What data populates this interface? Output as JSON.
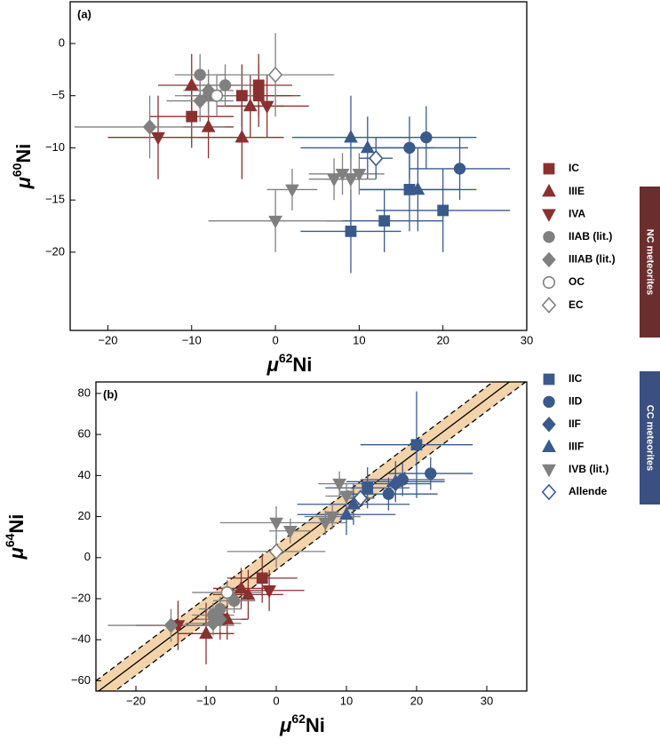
{
  "chart_data": [
    {
      "type": "scatter",
      "panel_label": "(a)",
      "xlabel": [
        "μ",
        "62",
        "Ni"
      ],
      "ylabel": [
        "μ",
        "60",
        "Ni"
      ],
      "xlim": [
        -24.5,
        30
      ],
      "ylim": [
        -27.5,
        4
      ],
      "xticks": [
        {
          "value": -20,
          "label": "−20"
        },
        {
          "value": -10,
          "label": "−10"
        },
        0,
        10,
        20,
        30
      ],
      "yticks": [
        0,
        {
          "value": -5,
          "label": "−5"
        },
        {
          "value": -10,
          "label": "−10"
        },
        {
          "value": -15,
          "label": "−15"
        },
        {
          "value": -20,
          "label": "−20"
        }
      ],
      "series": [
        {
          "name": "IC",
          "color": "#8b3030",
          "marker": "square",
          "filled": true,
          "x": [
            -10,
            -4,
            -2,
            -2
          ],
          "values": [
            -7,
            -5,
            -4,
            -5
          ],
          "xerr": [
            5,
            6,
            4,
            5
          ],
          "yerr": [
            3,
            3,
            3,
            3
          ]
        },
        {
          "name": "IIIE",
          "color": "#8b3030",
          "marker": "triangle-up",
          "filled": true,
          "x": [
            -10,
            -8,
            -4,
            -3
          ],
          "values": [
            -4,
            -8,
            -9,
            -6
          ],
          "xerr": [
            4,
            3,
            5,
            4
          ],
          "yerr": [
            3,
            3,
            4,
            3
          ]
        },
        {
          "name": "IVA",
          "color": "#8b3030",
          "marker": "triangle-down",
          "filled": true,
          "x": [
            -14,
            -1
          ],
          "values": [
            -9,
            -6
          ],
          "xerr": [
            6,
            5
          ],
          "yerr": [
            4,
            3
          ]
        },
        {
          "name": "IIAB (lit.)",
          "color": "#808080",
          "marker": "circle",
          "filled": true,
          "x": [
            -9,
            -6,
            -8
          ],
          "values": [
            -3,
            -4,
            -5
          ],
          "xerr": [
            3,
            3,
            3
          ],
          "yerr": [
            2,
            2,
            2
          ]
        },
        {
          "name": "IIIAB (lit.)",
          "color": "#808080",
          "marker": "diamond",
          "filled": true,
          "x": [
            -15,
            -9,
            -8
          ],
          "values": [
            -8,
            -5.5,
            -4.5
          ],
          "xerr": [
            9,
            4,
            3
          ],
          "yerr": [
            3,
            2,
            2
          ]
        },
        {
          "name": "OC",
          "color": "#808080",
          "marker": "circle",
          "filled": false,
          "x": [
            -7
          ],
          "values": [
            -5
          ],
          "xerr": [
            5
          ],
          "yerr": [
            2
          ]
        },
        {
          "name": "EC",
          "color": "#808080",
          "marker": "diamond",
          "filled": false,
          "x": [
            0
          ],
          "values": [
            -3
          ],
          "xerr": [
            7
          ],
          "yerr": [
            4
          ]
        },
        {
          "name": "IIC",
          "color": "#3a5a8c",
          "marker": "square",
          "filled": true,
          "x": [
            9,
            13,
            20,
            16
          ],
          "values": [
            -18,
            -17,
            -16,
            -14
          ],
          "xerr": [
            6,
            7,
            8,
            6
          ],
          "yerr": [
            4,
            3,
            4,
            4
          ]
        },
        {
          "name": "IID",
          "color": "#3a5a8c",
          "marker": "circle",
          "filled": true,
          "x": [
            16,
            18,
            22
          ],
          "values": [
            -10,
            -9,
            -12
          ],
          "xerr": [
            7,
            6,
            6
          ],
          "yerr": [
            3,
            3,
            3
          ]
        },
        {
          "name": "IIF",
          "color": "#3a5a8c",
          "marker": "diamond",
          "filled": true,
          "x": [],
          "values": [],
          "xerr": [],
          "yerr": []
        },
        {
          "name": "IIIF",
          "color": "#3a5a8c",
          "marker": "triangle-up",
          "filled": true,
          "x": [
            9,
            11,
            17
          ],
          "values": [
            -9,
            -10,
            -14
          ],
          "xerr": [
            7,
            8,
            7
          ],
          "yerr": [
            4,
            3,
            4
          ]
        },
        {
          "name": "IVB (lit.)",
          "color": "#808080",
          "marker": "triangle-down",
          "filled": true,
          "x": [
            0,
            2,
            7,
            8,
            9,
            10
          ],
          "values": [
            -17,
            -14,
            -13,
            -12.5,
            -13,
            -12.5
          ],
          "xerr": [
            8,
            3,
            3,
            4,
            3,
            3
          ],
          "yerr": [
            3,
            2,
            2,
            2,
            2,
            2
          ]
        },
        {
          "name": "Allende",
          "color": "#3a5a8c",
          "marker": "diamond",
          "filled": false,
          "x": [
            12
          ],
          "values": [
            -11
          ],
          "xerr": [
            2
          ],
          "yerr": [
            2
          ]
        }
      ]
    },
    {
      "type": "scatter",
      "panel_label": "(b)",
      "xlabel": [
        "μ",
        "62",
        "Ni"
      ],
      "ylabel": [
        "μ",
        "64",
        "Ni"
      ],
      "xlim": [
        -25.7,
        35.7
      ],
      "ylim": [
        -65,
        85.6
      ],
      "xticks": [
        {
          "value": -20,
          "label": "−20"
        },
        {
          "value": -10,
          "label": "−10"
        },
        0,
        10,
        20,
        30
      ],
      "yticks": [
        80,
        60,
        40,
        20,
        0,
        {
          "value": -20,
          "label": "−20"
        },
        {
          "value": -40,
          "label": "−40"
        },
        {
          "value": -60,
          "label": "−60"
        }
      ],
      "fit": {
        "x": [
          -25.7,
          35.7
        ],
        "values": [
          -66,
          92
        ],
        "lower": [
          -72,
          86
        ],
        "upper": [
          -60,
          98
        ]
      },
      "series": [
        {
          "name": "IC",
          "color": "#8b3030",
          "marker": "square",
          "filled": true,
          "x": [
            -2,
            -8
          ],
          "values": [
            -10,
            -30
          ],
          "xerr": [
            5,
            4
          ],
          "yerr": [
            12,
            10
          ]
        },
        {
          "name": "IIIE",
          "color": "#8b3030",
          "marker": "triangle-up",
          "filled": true,
          "x": [
            -10,
            -7,
            -4,
            -5
          ],
          "values": [
            -37,
            -30,
            -18,
            -15
          ],
          "xerr": [
            4,
            3,
            5,
            4
          ],
          "yerr": [
            15,
            10,
            12,
            10
          ]
        },
        {
          "name": "IVA",
          "color": "#8b3030",
          "marker": "triangle-down",
          "filled": true,
          "x": [
            -14,
            -1
          ],
          "values": [
            -33,
            -16
          ],
          "xerr": [
            6,
            5
          ],
          "yerr": [
            12,
            10
          ]
        },
        {
          "name": "IIAB (lit.)",
          "color": "#808080",
          "marker": "circle",
          "filled": true,
          "x": [
            -6,
            -8,
            -9
          ],
          "values": [
            -21,
            -25,
            -28
          ],
          "xerr": [
            3,
            3,
            3
          ],
          "yerr": [
            6,
            6,
            6
          ]
        },
        {
          "name": "IIIAB (lit.)",
          "color": "#808080",
          "marker": "diamond",
          "filled": true,
          "x": [
            -15,
            -9,
            -8
          ],
          "values": [
            -33,
            -32,
            -30
          ],
          "xerr": [
            9,
            4,
            3
          ],
          "yerr": [
            8,
            6,
            6
          ]
        },
        {
          "name": "OC",
          "color": "#808080",
          "marker": "circle",
          "filled": false,
          "x": [
            -7
          ],
          "values": [
            -17
          ],
          "xerr": [
            5
          ],
          "yerr": [
            6
          ]
        },
        {
          "name": "EC",
          "color": "#808080",
          "marker": "diamond",
          "filled": false,
          "x": [
            0
          ],
          "values": [
            3
          ],
          "xerr": [
            7
          ],
          "yerr": [
            8
          ]
        },
        {
          "name": "IIC",
          "color": "#3a5a8c",
          "marker": "square",
          "filled": true,
          "x": [
            20,
            13
          ],
          "values": [
            55,
            34
          ],
          "xerr": [
            8,
            6
          ],
          "yerr": [
            26,
            10
          ]
        },
        {
          "name": "IID",
          "color": "#3a5a8c",
          "marker": "circle",
          "filled": true,
          "x": [
            22,
            18,
            16
          ],
          "values": [
            41,
            38,
            31
          ],
          "xerr": [
            6,
            6,
            7
          ],
          "yerr": [
            8,
            8,
            8
          ]
        },
        {
          "name": "IIF",
          "color": "#3a5a8c",
          "marker": "diamond",
          "filled": true,
          "x": [
            17
          ],
          "values": [
            36
          ],
          "xerr": [
            5
          ],
          "yerr": [
            8
          ]
        },
        {
          "name": "IIIF",
          "color": "#3a5a8c",
          "marker": "triangle-up",
          "filled": true,
          "x": [
            11,
            10,
            17
          ],
          "values": [
            26,
            21,
            37
          ],
          "xerr": [
            8,
            7,
            7
          ],
          "yerr": [
            10,
            10,
            10
          ]
        },
        {
          "name": "IVB (lit.)",
          "color": "#808080",
          "marker": "triangle-down",
          "filled": true,
          "x": [
            0,
            2,
            7,
            8,
            9,
            10
          ],
          "values": [
            17,
            13,
            17,
            20,
            36,
            30
          ],
          "xerr": [
            8,
            3,
            3,
            4,
            3,
            3
          ],
          "yerr": [
            8,
            6,
            6,
            6,
            6,
            6
          ]
        },
        {
          "name": "Allende",
          "color": "#3a5a8c",
          "marker": "diamond",
          "filled": false,
          "x": [
            12
          ],
          "values": [
            29
          ],
          "xerr": [
            2
          ],
          "yerr": [
            4
          ]
        }
      ]
    }
  ],
  "legend_groups": [
    {
      "label": "NC meteorites",
      "color": "#6b2e2e"
    },
    {
      "label": "CC meteorites",
      "color": "#3b4f80"
    }
  ]
}
